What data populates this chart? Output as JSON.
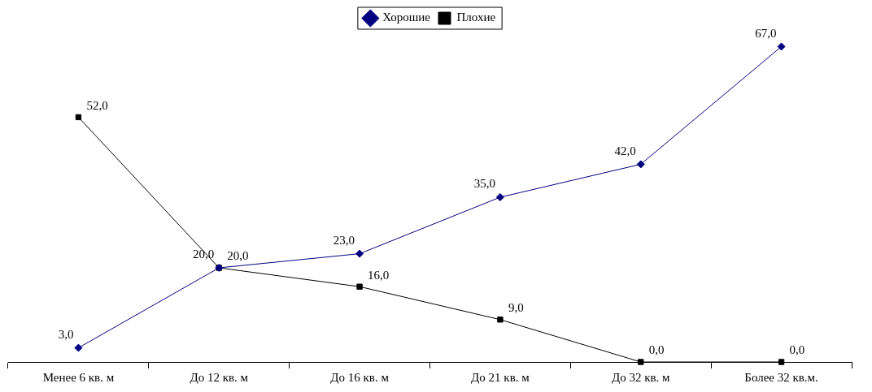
{
  "chart_data": {
    "type": "line",
    "categories": [
      "Менее 6 кв. м",
      "До 12 кв. м",
      "До 16 кв. м",
      "До 21 кв. м",
      "До 32 кв. м",
      "Более 32 кв.м."
    ],
    "series": [
      {
        "name": "Хорошие",
        "color": "#000080",
        "marker": "diamond",
        "values": [
          3,
          20,
          23,
          35,
          42,
          67
        ],
        "value_labels": [
          "3,0",
          "20,0",
          "23,0",
          "35,0",
          "42,0",
          "67,0"
        ]
      },
      {
        "name": "Плохие",
        "color": "#000000",
        "marker": "square",
        "values": [
          52,
          20,
          16,
          9,
          0,
          0
        ],
        "value_labels": [
          "52,0",
          "20,0",
          "16,0",
          "9,0",
          "0,0",
          "0,0"
        ]
      }
    ],
    "legend": "top",
    "grid": false,
    "tick_labels": "x",
    "line_style": "solid"
  }
}
